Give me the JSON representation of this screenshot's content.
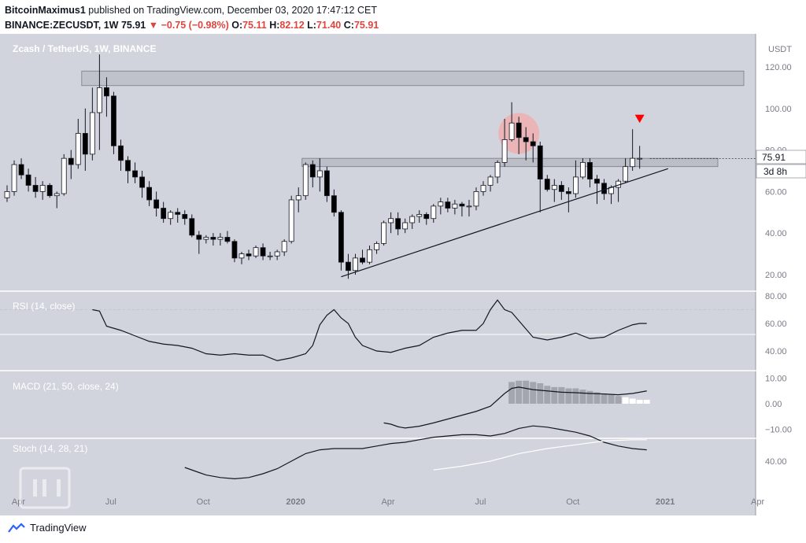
{
  "header": {
    "author": "BitcoinMaximus1",
    "published": "published on TradingView.com, December 03, 2020 17:47:12 CET",
    "symbol": "BINANCE:ZECUSDT, 1W",
    "last": "75.91",
    "change": "−0.75 (−0.98%)",
    "o_label": "O:",
    "o": "75.11",
    "h_label": "H:",
    "h": "82.12",
    "l_label": "L:",
    "l": "71.40",
    "c_label": "C:",
    "c": "75.91"
  },
  "price_panel": {
    "title": "Zcash / TetherUS, 1W, BINANCE",
    "currency": "USDT",
    "last_price": "75.91",
    "countdown": "3d 8h"
  },
  "footer": {
    "brand": "TradingView"
  },
  "colors": {
    "bg": "#d1d4dc",
    "up": "#ffffff",
    "down": "#000000",
    "marker": "#ff0000",
    "circle": "#f7a8a8",
    "zone": "#b2b5be"
  },
  "chart_data": [
    {
      "type": "candlestick",
      "title": "Zcash / TetherUS, 1W, BINANCE",
      "ylabel": "USDT",
      "y_ticks": [
        "20.00",
        "40.00",
        "60.00",
        "80.00",
        "100.00",
        "120.00"
      ],
      "ylim": [
        10,
        130
      ],
      "x_ticks": [
        "Apr",
        "Jul",
        "Oct",
        "2020",
        "Apr",
        "Jul",
        "Oct",
        "2021",
        "Apr"
      ],
      "x_tick_pos": [
        1.6,
        14.6,
        27.6,
        40.6,
        53.6,
        66.6,
        79.6,
        92.6,
        105.6
      ],
      "ohlc": [
        [
          57,
          63,
          55,
          60
        ],
        [
          60,
          75,
          58,
          73
        ],
        [
          73,
          76,
          66,
          68
        ],
        [
          68,
          71,
          60,
          63
        ],
        [
          63,
          67,
          57,
          60
        ],
        [
          60,
          65,
          56,
          63
        ],
        [
          63,
          64,
          57,
          58
        ],
        [
          58,
          60,
          52,
          59
        ],
        [
          59,
          78,
          58,
          76
        ],
        [
          76,
          80,
          66,
          73
        ],
        [
          73,
          95,
          71,
          88
        ],
        [
          88,
          100,
          70,
          78
        ],
        [
          78,
          110,
          75,
          98
        ],
        [
          98,
          126,
          80,
          110
        ],
        [
          110,
          115,
          96,
          106
        ],
        [
          106,
          108,
          78,
          82
        ],
        [
          82,
          85,
          70,
          75
        ],
        [
          75,
          77,
          64,
          70
        ],
        [
          70,
          74,
          64,
          67
        ],
        [
          67,
          70,
          57,
          62
        ],
        [
          62,
          65,
          53,
          56
        ],
        [
          56,
          60,
          48,
          52
        ],
        [
          52,
          55,
          45,
          47
        ],
        [
          47,
          51,
          44,
          50
        ],
        [
          50,
          52,
          45,
          49
        ],
        [
          49,
          51,
          44,
          47
        ],
        [
          47,
          49,
          38,
          39
        ],
        [
          39,
          41,
          30,
          37
        ],
        [
          37,
          39,
          35,
          38
        ],
        [
          38,
          40,
          34,
          37
        ],
        [
          37,
          40,
          34,
          38
        ],
        [
          38,
          41,
          35,
          36
        ],
        [
          36,
          37,
          26,
          28
        ],
        [
          28,
          31,
          25,
          30
        ],
        [
          30,
          32,
          27,
          29
        ],
        [
          29,
          34,
          28,
          33
        ],
        [
          33,
          35,
          27,
          29
        ],
        [
          29,
          31,
          27,
          29
        ],
        [
          29,
          32,
          27,
          31
        ],
        [
          31,
          37,
          29,
          36
        ],
        [
          36,
          58,
          35,
          56
        ],
        [
          56,
          62,
          50,
          58
        ],
        [
          58,
          74,
          56,
          73
        ],
        [
          73,
          75,
          62,
          67
        ],
        [
          67,
          76,
          60,
          70
        ],
        [
          70,
          72,
          55,
          58
        ],
        [
          58,
          61,
          48,
          50
        ],
        [
          50,
          51,
          22,
          26
        ],
        [
          26,
          30,
          18,
          22
        ],
        [
          22,
          30,
          20,
          28
        ],
        [
          28,
          32,
          25,
          26
        ],
        [
          26,
          34,
          25,
          32
        ],
        [
          32,
          36,
          30,
          35
        ],
        [
          35,
          46,
          34,
          45
        ],
        [
          45,
          50,
          40,
          47
        ],
        [
          47,
          50,
          39,
          42
        ],
        [
          42,
          47,
          40,
          45
        ],
        [
          45,
          49,
          42,
          48
        ],
        [
          48,
          51,
          45,
          49
        ],
        [
          49,
          50,
          44,
          47
        ],
        [
          47,
          54,
          45,
          53
        ],
        [
          53,
          57,
          49,
          55
        ],
        [
          55,
          57,
          50,
          52
        ],
        [
          52,
          56,
          49,
          54
        ],
        [
          54,
          55,
          48,
          53
        ],
        [
          53,
          56,
          48,
          53
        ],
        [
          53,
          62,
          51,
          60
        ],
        [
          60,
          65,
          58,
          63
        ],
        [
          63,
          68,
          60,
          67
        ],
        [
          67,
          75,
          64,
          74
        ],
        [
          74,
          95,
          72,
          85
        ],
        [
          85,
          103,
          84,
          93
        ],
        [
          93,
          96,
          78,
          86
        ],
        [
          86,
          91,
          75,
          84
        ],
        [
          84,
          88,
          74,
          82
        ],
        [
          82,
          84,
          50,
          66
        ],
        [
          66,
          68,
          60,
          61
        ],
        [
          61,
          66,
          55,
          63
        ],
        [
          63,
          65,
          56,
          60
        ],
        [
          60,
          62,
          50,
          59
        ],
        [
          59,
          75,
          57,
          67
        ],
        [
          67,
          76,
          66,
          74
        ],
        [
          74,
          76,
          62,
          66
        ],
        [
          66,
          68,
          54,
          64
        ],
        [
          64,
          66,
          56,
          59
        ],
        [
          59,
          63,
          54,
          62
        ],
        [
          62,
          66,
          55,
          65
        ],
        [
          65,
          76,
          64,
          72
        ],
        [
          72,
          90,
          70,
          76
        ],
        [
          76,
          82,
          71,
          76
        ]
      ],
      "resistance_zone": [
        111,
        118
      ],
      "support_zone": [
        72,
        76
      ],
      "ascending_trendline": [
        [
          47,
          19
        ],
        [
          93,
          71
        ]
      ],
      "annotations": [
        "red down arrow above week 89",
        "red circle over July 2020 high"
      ]
    },
    {
      "type": "line",
      "title": "RSI (14, close)",
      "y_ticks": [
        "40.00",
        "60.00",
        "80.00"
      ],
      "ylim": [
        30,
        85
      ],
      "reference_line": 52,
      "x": [
        12,
        13,
        14,
        16,
        18,
        20,
        22,
        24,
        26,
        28,
        30,
        32,
        34,
        36,
        38,
        40,
        42,
        43,
        44,
        45,
        46,
        47,
        48,
        49,
        50,
        52,
        54,
        56,
        58,
        60,
        62,
        64,
        66,
        67,
        68,
        69,
        70,
        71,
        72,
        74,
        76,
        78,
        80,
        82,
        84,
        86,
        88,
        89,
        90
      ],
      "y": [
        70,
        69,
        58,
        55,
        51,
        47,
        45,
        44,
        42,
        38,
        37,
        38,
        37,
        37,
        33,
        35,
        38,
        44,
        59,
        66,
        70,
        64,
        60,
        50,
        44,
        40,
        39,
        42,
        44,
        50,
        53,
        55,
        55,
        60,
        70,
        77,
        70,
        68,
        62,
        50,
        48,
        50,
        53,
        49,
        50,
        55,
        59,
        60,
        60
      ]
    },
    {
      "type": "bar+line",
      "title": "MACD (21, 50, close, 24)",
      "y_ticks": [
        "10.00",
        "0.00",
        "−10.00"
      ],
      "ylim": [
        -14,
        13
      ],
      "macd_x": [
        53,
        54,
        55,
        56,
        58,
        60,
        62,
        64,
        66,
        68,
        69,
        70,
        71,
        72,
        73,
        74,
        76,
        78,
        80,
        82,
        84,
        86,
        88,
        89,
        90
      ],
      "macd_y": [
        -7.5,
        -8,
        -9,
        -9.5,
        -8.8,
        -7.5,
        -6,
        -4.5,
        -3,
        -1,
        1.5,
        4,
        6,
        6.5,
        6,
        5.5,
        5,
        4.5,
        4.3,
        4,
        3.8,
        3.5,
        4,
        4.5,
        5
      ],
      "histogram_x": [
        71,
        72,
        73,
        74,
        75,
        76,
        77,
        78,
        79,
        80,
        81,
        82,
        83,
        84,
        85,
        86,
        87,
        88,
        89,
        90
      ],
      "histogram": [
        8.5,
        9,
        9,
        8.5,
        8,
        7,
        6.5,
        6.5,
        6,
        6,
        5.5,
        5,
        4.5,
        4,
        3.5,
        3,
        2.5,
        2,
        1.5,
        1.5
      ]
    },
    {
      "type": "line",
      "title": "Stoch (14, 28, 21)",
      "y_ticks": [
        "40.00"
      ],
      "ylim": [
        20,
        75
      ],
      "k_x": [
        25,
        28,
        30,
        32,
        34,
        36,
        38,
        40,
        42,
        44,
        46,
        48,
        50,
        52,
        54,
        56,
        58,
        60,
        62,
        64,
        66,
        68,
        70,
        72,
        74,
        76,
        78,
        80,
        82,
        84,
        86,
        88,
        90
      ],
      "k_y": [
        35,
        29,
        27,
        26,
        27,
        30,
        34,
        40,
        46,
        49,
        50,
        50,
        50,
        52,
        54,
        55,
        57,
        59,
        60,
        61,
        61,
        60,
        62,
        66,
        68,
        67,
        65,
        63,
        60,
        55,
        52,
        50,
        49
      ],
      "d_x": [
        60,
        64,
        68,
        72,
        76,
        80,
        84,
        88,
        90
      ],
      "d_y": [
        33,
        36,
        40,
        46,
        50,
        53,
        56,
        57,
        57
      ]
    }
  ]
}
